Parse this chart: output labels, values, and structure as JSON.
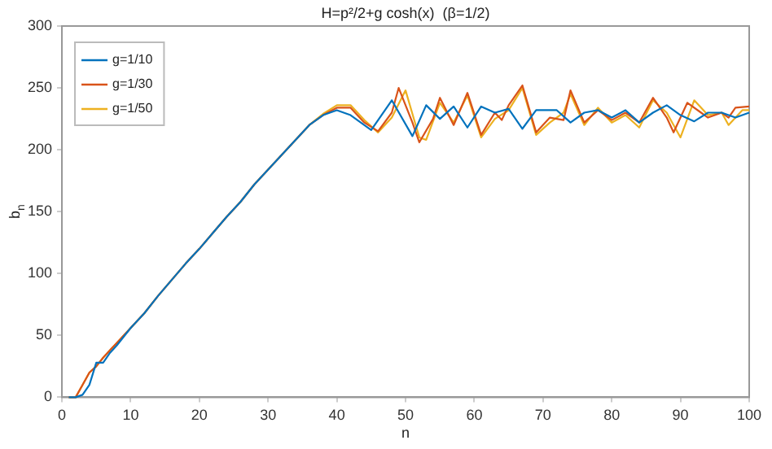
{
  "chart_data": {
    "type": "line",
    "title": "H=p²/2+g cosh(x)  (β=1/2)",
    "xlabel": "n",
    "ylabel": "b$_{n}$",
    "xlim": [
      0,
      100
    ],
    "xticks": [
      0,
      10,
      20,
      30,
      40,
      50,
      60,
      70,
      80,
      90,
      100
    ],
    "ylim": [
      0,
      300
    ],
    "yticks": [
      0,
      50,
      100,
      150,
      200,
      250,
      300
    ],
    "grid": false,
    "legend": "top left",
    "marker": "none",
    "line_style": "solid",
    "series": [
      {
        "name": "g=1/10",
        "color": "#0072bd",
        "x": [
          1,
          2,
          3,
          4,
          5,
          6,
          7,
          8,
          10,
          12,
          14,
          16,
          18,
          20,
          22,
          24,
          26,
          28,
          30,
          32,
          34,
          36,
          38,
          40,
          42,
          45,
          48,
          51,
          53,
          55,
          57,
          59,
          61,
          63,
          65,
          67,
          69,
          72,
          74,
          76,
          78,
          80,
          82,
          84,
          86,
          88,
          90,
          92,
          94,
          96,
          98,
          100
        ],
        "values": [
          0,
          0,
          2,
          10,
          28,
          28,
          36,
          42,
          56,
          68,
          82,
          95,
          108,
          120,
          133,
          146,
          158,
          172,
          184,
          196,
          208,
          220,
          228,
          232,
          228,
          216,
          240,
          211,
          236,
          225,
          235,
          218,
          235,
          230,
          233,
          217,
          232,
          232,
          222,
          230,
          232,
          226,
          232,
          222,
          230,
          236,
          228,
          223,
          230,
          230,
          226,
          230
        ]
      },
      {
        "name": "g=1/30",
        "color": "#d95319",
        "x": [
          1,
          2,
          3,
          4,
          5,
          6,
          7,
          8,
          10,
          12,
          14,
          16,
          18,
          20,
          22,
          24,
          26,
          28,
          30,
          32,
          34,
          36,
          38,
          40,
          42,
          44,
          46,
          48,
          49,
          51,
          52,
          54,
          55,
          57,
          59,
          61,
          63,
          64,
          65,
          67,
          69,
          71,
          73,
          74,
          76,
          78,
          80,
          82,
          84,
          86,
          88,
          89,
          91,
          93,
          94,
          96,
          97,
          98,
          100
        ],
        "values": [
          0,
          0,
          10,
          20,
          25,
          32,
          38,
          44,
          56,
          68,
          82,
          95,
          108,
          120,
          133,
          146,
          158,
          172,
          184,
          196,
          208,
          220,
          228,
          234,
          234,
          222,
          215,
          230,
          250,
          222,
          206,
          225,
          242,
          220,
          246,
          212,
          230,
          224,
          236,
          252,
          214,
          226,
          224,
          248,
          222,
          232,
          224,
          230,
          222,
          242,
          226,
          214,
          238,
          230,
          226,
          230,
          226,
          234,
          235
        ]
      },
      {
        "name": "g=1/50",
        "color": "#edb120",
        "x": [
          1,
          2,
          3,
          4,
          5,
          6,
          7,
          8,
          10,
          12,
          14,
          16,
          18,
          20,
          22,
          24,
          26,
          28,
          30,
          32,
          34,
          36,
          38,
          40,
          42,
          44,
          46,
          48,
          50,
          52,
          53,
          55,
          57,
          59,
          61,
          63,
          65,
          67,
          69,
          71,
          73,
          74,
          76,
          78,
          80,
          82,
          84,
          86,
          88,
          90,
          92,
          94,
          96,
          97,
          99,
          100
        ],
        "values": [
          0,
          0,
          10,
          20,
          25,
          32,
          38,
          44,
          56,
          68,
          82,
          95,
          108,
          120,
          133,
          146,
          158,
          172,
          184,
          196,
          208,
          220,
          229,
          236,
          236,
          224,
          214,
          226,
          248,
          210,
          208,
          238,
          222,
          244,
          210,
          225,
          232,
          250,
          212,
          222,
          230,
          245,
          220,
          234,
          222,
          228,
          218,
          240,
          230,
          210,
          240,
          228,
          230,
          220,
          232,
          232
        ]
      }
    ]
  }
}
